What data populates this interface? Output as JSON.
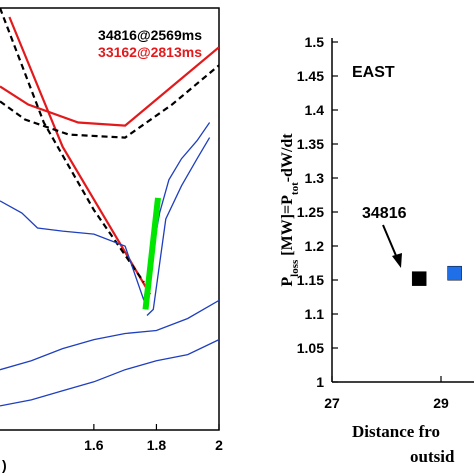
{
  "chart_data": [
    {
      "type": "line",
      "title": "",
      "xlabel": "",
      "xlabel_fragment": ")",
      "ylabel": "",
      "xlim": [
        1.3,
        2.0
      ],
      "ylim": [
        -0.95,
        0.45
      ],
      "xticks": [
        "1.6",
        "1.8",
        "2"
      ],
      "xtick_values": [
        1.6,
        1.8,
        2.0
      ],
      "legend": {
        "placement": "top-right",
        "entries": [
          {
            "label": "34816@2569ms",
            "color": "#000000"
          },
          {
            "label": "33162@2813ms",
            "color": "#e31a1c"
          }
        ]
      },
      "series": [
        {
          "color": "#e31a1c",
          "style": "solid",
          "x": [
            1.3,
            1.39,
            1.55,
            1.7,
            1.85,
            2.0
          ],
          "y": [
            0.19,
            0.13,
            0.07,
            0.06,
            0.19,
            0.32
          ]
        },
        {
          "color": "#e31a1c",
          "style": "solid",
          "x": [
            1.33,
            1.5,
            1.78
          ],
          "y": [
            0.42,
            -0.01,
            -0.5
          ]
        },
        {
          "color": "#000000",
          "style": "dashed",
          "x": [
            1.3,
            1.38,
            1.52,
            1.7,
            1.85,
            2.0
          ],
          "y": [
            0.14,
            0.08,
            0.03,
            0.02,
            0.13,
            0.26
          ]
        },
        {
          "color": "#000000",
          "style": "dashed",
          "x": [
            1.3,
            1.44,
            1.6,
            1.76
          ],
          "y": [
            0.45,
            0.07,
            -0.22,
            -0.46
          ]
        },
        {
          "color": "#1f3fbf",
          "style": "solid",
          "x": [
            1.3,
            1.37,
            1.42,
            1.5,
            1.6,
            1.7,
            1.76
          ],
          "y": [
            -0.19,
            -0.23,
            -0.28,
            -0.29,
            -0.3,
            -0.34,
            -0.52
          ]
        },
        {
          "color": "#1f3fbf",
          "style": "solid",
          "x": [
            1.76,
            1.81,
            1.84,
            1.88,
            1.93,
            1.97
          ],
          "y": [
            -0.52,
            -0.23,
            -0.12,
            -0.05,
            0.01,
            0.07
          ]
        },
        {
          "color": "#1f3fbf",
          "style": "solid",
          "x": [
            1.77,
            1.79,
            1.83,
            1.88,
            1.93,
            1.97
          ],
          "y": [
            -0.57,
            -0.55,
            -0.25,
            -0.14,
            -0.05,
            0.02
          ]
        },
        {
          "color": "#1f3fbf",
          "style": "solid",
          "x": [
            1.3,
            1.4,
            1.5,
            1.6,
            1.7,
            1.8,
            1.9,
            2.0
          ],
          "y": [
            -0.75,
            -0.72,
            -0.68,
            -0.65,
            -0.63,
            -0.62,
            -0.58,
            -0.52
          ]
        },
        {
          "color": "#1f3fbf",
          "style": "solid",
          "x": [
            1.3,
            1.4,
            1.5,
            1.6,
            1.7,
            1.8,
            1.9,
            2.0
          ],
          "y": [
            -0.87,
            -0.85,
            -0.82,
            -0.79,
            -0.75,
            -0.72,
            -0.7,
            -0.65
          ]
        },
        {
          "color": "#00e600",
          "style": "thick",
          "x": [
            1.765,
            1.805
          ],
          "y": [
            -0.55,
            -0.18
          ]
        }
      ]
    },
    {
      "type": "scatter",
      "title": "",
      "annotation_title": "EAST",
      "xlabel": "Distance fro",
      "xlabel_line2": "outsid",
      "ylabel_parts": [
        "P",
        "loss",
        " [MW]=P",
        "tot",
        "-dW/dt"
      ],
      "xlim": [
        27,
        31
      ],
      "ylim": [
        1.0,
        1.5
      ],
      "xticks": [
        "27",
        "29"
      ],
      "yticks": [
        "1.5",
        "1.45",
        "1.4",
        "1.35",
        "1.3",
        "1.25",
        "1.2",
        "1.15",
        "1.1",
        "1.05",
        "1"
      ],
      "ytick_values": [
        1.5,
        1.45,
        1.4,
        1.35,
        1.3,
        1.25,
        1.2,
        1.15,
        1.1,
        1.05,
        1.0
      ],
      "points": [
        {
          "label": "34816",
          "x": 28.6,
          "y": 1.152,
          "color": "#000000"
        },
        {
          "label": "",
          "x": 29.25,
          "y": 1.16,
          "color": "#1f6fe8"
        }
      ]
    }
  ]
}
